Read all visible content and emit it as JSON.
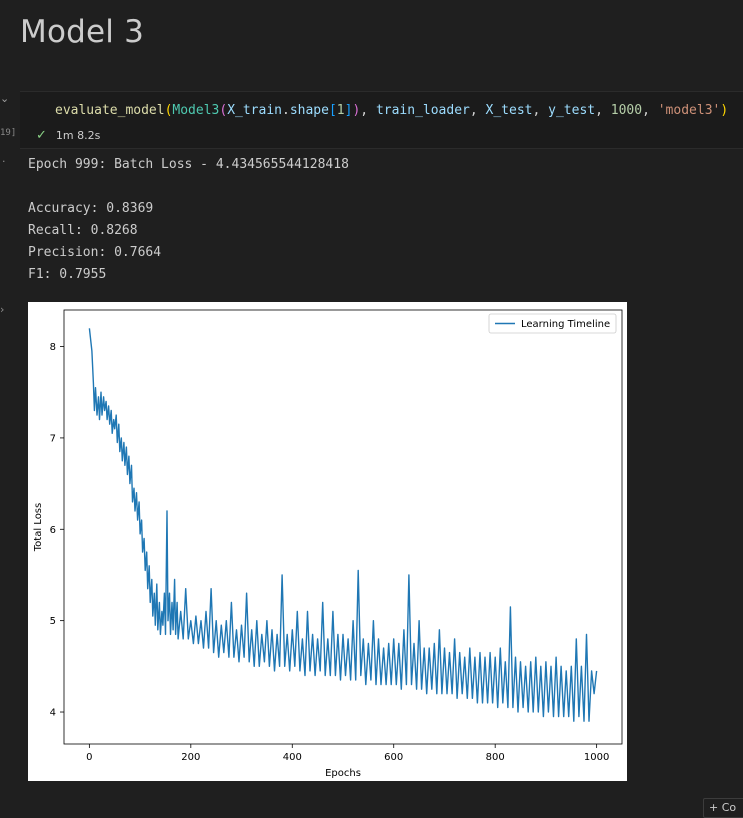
{
  "markdown": {
    "title": "Model 3"
  },
  "cell": {
    "execution_count": "19]",
    "code_tokens": [
      {
        "t": "evaluate_model",
        "c": "tk-fn"
      },
      {
        "t": "(",
        "c": "tk-p1"
      },
      {
        "t": "Model3",
        "c": "tk-cls"
      },
      {
        "t": "(",
        "c": "tk-p2"
      },
      {
        "t": "X_train",
        "c": "tk-var"
      },
      {
        "t": ".",
        "c": ""
      },
      {
        "t": "shape",
        "c": "tk-var"
      },
      {
        "t": "[",
        "c": "tk-p3"
      },
      {
        "t": "1",
        "c": "tk-num"
      },
      {
        "t": "]",
        "c": "tk-p3"
      },
      {
        "t": ")",
        "c": "tk-p2"
      },
      {
        "t": ", ",
        "c": ""
      },
      {
        "t": "train_loader",
        "c": "tk-var"
      },
      {
        "t": ", ",
        "c": ""
      },
      {
        "t": "X_test",
        "c": "tk-var"
      },
      {
        "t": ", ",
        "c": ""
      },
      {
        "t": "y_test",
        "c": "tk-var"
      },
      {
        "t": ", ",
        "c": ""
      },
      {
        "t": "1000",
        "c": "tk-num"
      },
      {
        "t": ", ",
        "c": ""
      },
      {
        "t": "'model3'",
        "c": "tk-str"
      },
      {
        "t": ")",
        "c": "tk-p1"
      }
    ],
    "status_time": "1m 8.2s"
  },
  "output": {
    "lines": [
      "Epoch 999: Batch Loss - 4.434565544128418",
      "",
      "Accuracy: 0.8369",
      "Recall: 0.8268",
      "Precision: 0.7664",
      "F1: 0.7955"
    ]
  },
  "add_cell_label": "+ Co",
  "colors": {
    "series": "#1f77b4",
    "check": "#89d185"
  },
  "chart_data": {
    "type": "line",
    "xlabel": "Epochs",
    "ylabel": "Total Loss",
    "xlim": [
      -50,
      1050
    ],
    "ylim": [
      3.65,
      8.4
    ],
    "x_ticks": [
      0,
      200,
      400,
      600,
      800,
      1000
    ],
    "y_ticks": [
      4,
      5,
      6,
      7,
      8
    ],
    "legend": "top-right",
    "grid": false,
    "series": [
      {
        "name": "Learning Timeline",
        "points": [
          [
            0,
            8.2
          ],
          [
            5,
            7.95
          ],
          [
            8,
            7.6
          ],
          [
            10,
            7.3
          ],
          [
            12,
            7.55
          ],
          [
            15,
            7.25
          ],
          [
            18,
            7.45
          ],
          [
            20,
            7.2
          ],
          [
            23,
            7.5
          ],
          [
            25,
            7.25
          ],
          [
            28,
            7.45
          ],
          [
            30,
            7.3
          ],
          [
            33,
            7.4
          ],
          [
            35,
            7.2
          ],
          [
            38,
            7.35
          ],
          [
            40,
            7.15
          ],
          [
            43,
            7.3
          ],
          [
            45,
            7.05
          ],
          [
            48,
            7.2
          ],
          [
            50,
            7.1
          ],
          [
            53,
            7.25
          ],
          [
            55,
            6.95
          ],
          [
            58,
            7.15
          ],
          [
            60,
            6.85
          ],
          [
            63,
            7.0
          ],
          [
            65,
            6.75
          ],
          [
            68,
            6.95
          ],
          [
            70,
            6.7
          ],
          [
            73,
            6.9
          ],
          [
            75,
            6.6
          ],
          [
            78,
            6.8
          ],
          [
            80,
            6.5
          ],
          [
            83,
            6.7
          ],
          [
            85,
            6.3
          ],
          [
            88,
            6.45
          ],
          [
            90,
            6.2
          ],
          [
            93,
            6.4
          ],
          [
            95,
            6.1
          ],
          [
            98,
            6.3
          ],
          [
            100,
            5.95
          ],
          [
            103,
            6.1
          ],
          [
            105,
            5.75
          ],
          [
            108,
            5.9
          ],
          [
            110,
            5.55
          ],
          [
            113,
            5.75
          ],
          [
            115,
            5.35
          ],
          [
            118,
            5.6
          ],
          [
            120,
            5.2
          ],
          [
            123,
            5.45
          ],
          [
            125,
            5.05
          ],
          [
            128,
            5.3
          ],
          [
            130,
            4.95
          ],
          [
            133,
            5.4
          ],
          [
            135,
            4.9
          ],
          [
            138,
            5.2
          ],
          [
            140,
            4.85
          ],
          [
            143,
            5.1
          ],
          [
            145,
            4.95
          ],
          [
            148,
            5.3
          ],
          [
            150,
            4.85
          ],
          [
            153,
            6.2
          ],
          [
            155,
            5.0
          ],
          [
            158,
            5.3
          ],
          [
            160,
            4.85
          ],
          [
            163,
            5.2
          ],
          [
            165,
            4.9
          ],
          [
            168,
            5.45
          ],
          [
            170,
            4.85
          ],
          [
            173,
            5.2
          ],
          [
            175,
            4.8
          ],
          [
            180,
            5.1
          ],
          [
            185,
            4.8
          ],
          [
            190,
            5.35
          ],
          [
            195,
            4.8
          ],
          [
            200,
            5.0
          ],
          [
            205,
            4.75
          ],
          [
            210,
            5.05
          ],
          [
            215,
            4.75
          ],
          [
            220,
            5.0
          ],
          [
            225,
            4.7
          ],
          [
            230,
            5.1
          ],
          [
            235,
            4.7
          ],
          [
            240,
            5.35
          ],
          [
            245,
            4.65
          ],
          [
            250,
            5.0
          ],
          [
            255,
            4.6
          ],
          [
            260,
            4.95
          ],
          [
            265,
            4.65
          ],
          [
            270,
            5.0
          ],
          [
            275,
            4.6
          ],
          [
            280,
            5.2
          ],
          [
            285,
            4.6
          ],
          [
            290,
            4.9
          ],
          [
            295,
            4.55
          ],
          [
            300,
            4.95
          ],
          [
            305,
            4.6
          ],
          [
            310,
            5.3
          ],
          [
            315,
            4.55
          ],
          [
            320,
            4.9
          ],
          [
            325,
            4.5
          ],
          [
            330,
            5.0
          ],
          [
            335,
            4.5
          ],
          [
            340,
            4.85
          ],
          [
            345,
            4.55
          ],
          [
            350,
            5.0
          ],
          [
            355,
            4.5
          ],
          [
            360,
            4.9
          ],
          [
            365,
            4.45
          ],
          [
            370,
            4.85
          ],
          [
            375,
            4.5
          ],
          [
            380,
            5.5
          ],
          [
            385,
            4.5
          ],
          [
            390,
            4.85
          ],
          [
            395,
            4.45
          ],
          [
            400,
            4.9
          ],
          [
            405,
            4.5
          ],
          [
            410,
            5.1
          ],
          [
            415,
            4.45
          ],
          [
            420,
            4.8
          ],
          [
            425,
            4.4
          ],
          [
            430,
            5.1
          ],
          [
            435,
            4.45
          ],
          [
            440,
            4.85
          ],
          [
            445,
            4.4
          ],
          [
            450,
            4.8
          ],
          [
            455,
            4.45
          ],
          [
            460,
            5.2
          ],
          [
            465,
            4.4
          ],
          [
            470,
            4.8
          ],
          [
            475,
            4.4
          ],
          [
            480,
            5.1
          ],
          [
            485,
            4.4
          ],
          [
            490,
            4.85
          ],
          [
            495,
            4.35
          ],
          [
            500,
            4.85
          ],
          [
            505,
            4.4
          ],
          [
            510,
            4.8
          ],
          [
            515,
            4.35
          ],
          [
            520,
            5.0
          ],
          [
            525,
            4.35
          ],
          [
            530,
            5.55
          ],
          [
            535,
            4.4
          ],
          [
            540,
            4.8
          ],
          [
            545,
            4.3
          ],
          [
            550,
            4.75
          ],
          [
            555,
            4.35
          ],
          [
            560,
            5.0
          ],
          [
            565,
            4.3
          ],
          [
            570,
            4.8
          ],
          [
            575,
            4.3
          ],
          [
            580,
            4.7
          ],
          [
            585,
            4.3
          ],
          [
            590,
            4.75
          ],
          [
            595,
            4.3
          ],
          [
            600,
            4.8
          ],
          [
            605,
            4.3
          ],
          [
            610,
            4.75
          ],
          [
            615,
            4.25
          ],
          [
            620,
            4.9
          ],
          [
            625,
            4.3
          ],
          [
            630,
            5.5
          ],
          [
            635,
            4.3
          ],
          [
            640,
            4.75
          ],
          [
            645,
            4.25
          ],
          [
            650,
            5.0
          ],
          [
            655,
            4.25
          ],
          [
            660,
            4.7
          ],
          [
            665,
            4.2
          ],
          [
            670,
            4.7
          ],
          [
            675,
            4.25
          ],
          [
            680,
            4.75
          ],
          [
            685,
            4.2
          ],
          [
            690,
            4.9
          ],
          [
            695,
            4.2
          ],
          [
            700,
            4.7
          ],
          [
            705,
            4.2
          ],
          [
            710,
            4.65
          ],
          [
            715,
            4.2
          ],
          [
            720,
            4.8
          ],
          [
            725,
            4.15
          ],
          [
            730,
            4.65
          ],
          [
            735,
            4.2
          ],
          [
            740,
            4.6
          ],
          [
            745,
            4.15
          ],
          [
            750,
            4.7
          ],
          [
            755,
            4.15
          ],
          [
            760,
            4.6
          ],
          [
            765,
            4.1
          ],
          [
            770,
            4.65
          ],
          [
            775,
            4.1
          ],
          [
            780,
            4.6
          ],
          [
            785,
            4.1
          ],
          [
            790,
            4.65
          ],
          [
            795,
            4.1
          ],
          [
            800,
            4.6
          ],
          [
            805,
            4.05
          ],
          [
            810,
            4.7
          ],
          [
            815,
            4.1
          ],
          [
            820,
            4.55
          ],
          [
            825,
            4.05
          ],
          [
            830,
            5.15
          ],
          [
            835,
            4.05
          ],
          [
            840,
            4.6
          ],
          [
            845,
            4.0
          ],
          [
            850,
            4.55
          ],
          [
            855,
            4.05
          ],
          [
            860,
            4.5
          ],
          [
            865,
            4.0
          ],
          [
            870,
            4.55
          ],
          [
            875,
            4.0
          ],
          [
            880,
            4.6
          ],
          [
            885,
            4.0
          ],
          [
            890,
            4.5
          ],
          [
            895,
            3.95
          ],
          [
            900,
            4.55
          ],
          [
            905,
            4.0
          ],
          [
            910,
            4.5
          ],
          [
            915,
            3.95
          ],
          [
            920,
            4.6
          ],
          [
            925,
            3.95
          ],
          [
            930,
            4.5
          ],
          [
            935,
            3.95
          ],
          [
            940,
            4.45
          ],
          [
            945,
            3.95
          ],
          [
            950,
            4.5
          ],
          [
            955,
            3.9
          ],
          [
            960,
            4.8
          ],
          [
            965,
            3.95
          ],
          [
            970,
            4.5
          ],
          [
            975,
            3.9
          ],
          [
            980,
            4.85
          ],
          [
            985,
            3.9
          ],
          [
            990,
            4.45
          ],
          [
            995,
            4.2
          ],
          [
            1000,
            4.45
          ]
        ]
      }
    ]
  }
}
